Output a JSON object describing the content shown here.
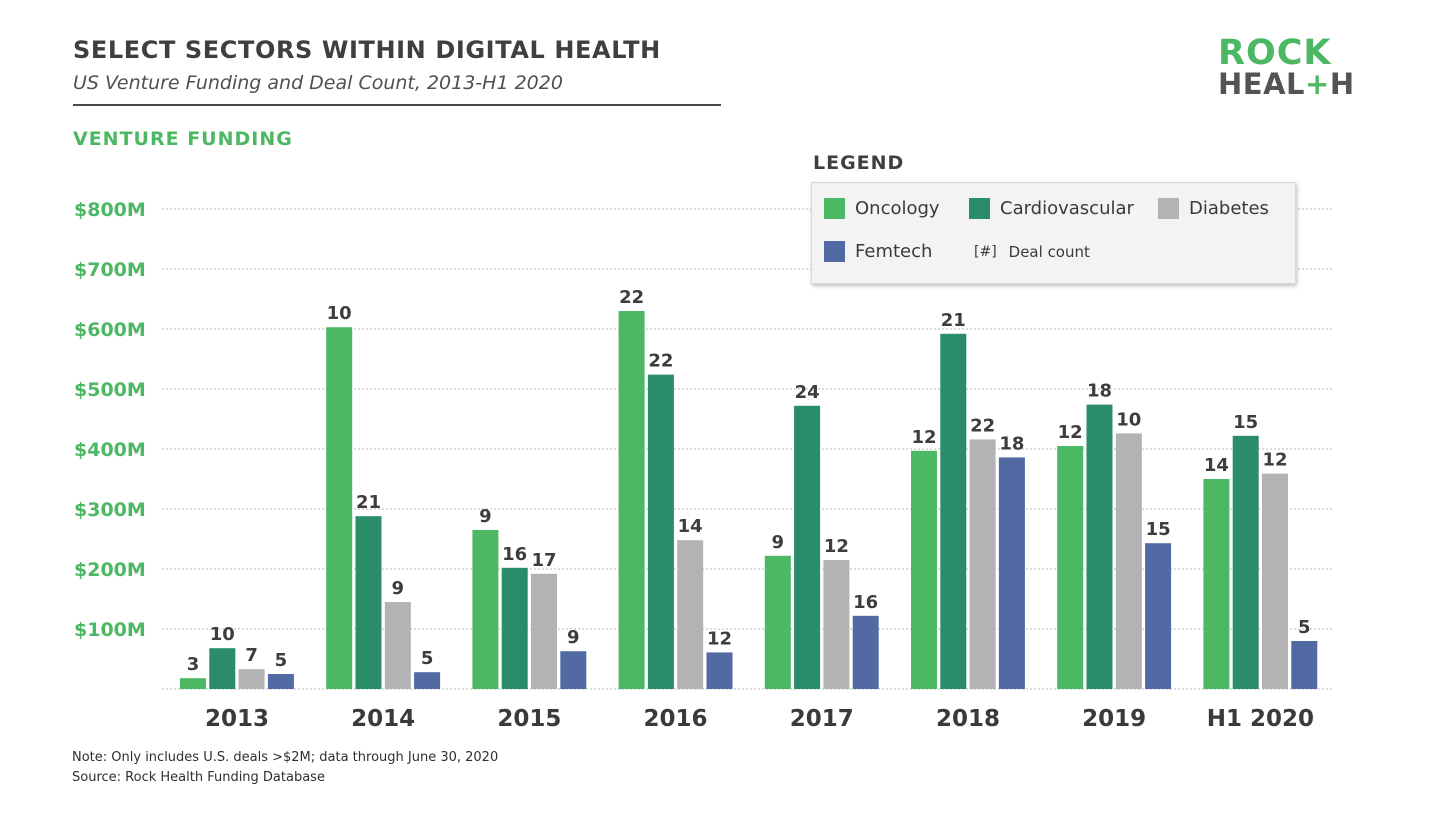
{
  "header": {
    "title": "SELECT SECTORS WITHIN DIGITAL HEALTH",
    "subtitle": "US Venture Funding and Deal Count, 2013-H1 2020",
    "section_title": "VENTURE FUNDING"
  },
  "logo": {
    "line1": "ROCK",
    "line2_a": "HEAL",
    "line2_plus": "+",
    "line2_b": "H"
  },
  "legend": {
    "title": "LEGEND",
    "deal_symbol": "[#]",
    "deal_label": "Deal count"
  },
  "colors": {
    "oncology": "#4cb863",
    "cardiovascular": "#2a8c69",
    "diabetes": "#b3b3b5",
    "femtech": "#526aa3",
    "axis_label": "#4cb863",
    "grid": "#b9b9b9"
  },
  "chart_data": {
    "type": "bar",
    "title": "SELECT SECTORS WITHIN DIGITAL HEALTH",
    "subtitle": "US Venture Funding and Deal Count, 2013-H1 2020",
    "ylabel": "VENTURE FUNDING",
    "xlabel": "",
    "categories": [
      "2013",
      "2014",
      "2015",
      "2016",
      "2017",
      "2018",
      "2019",
      "H1 2020"
    ],
    "ylim": [
      0,
      800
    ],
    "yticks": [
      100,
      200,
      300,
      400,
      500,
      600,
      700,
      800
    ],
    "ytick_labels": [
      "$100M",
      "$200M",
      "$300M",
      "$400M",
      "$500M",
      "$600M",
      "$700M",
      "$800M"
    ],
    "grid": true,
    "legend_position": "top-right",
    "series": [
      {
        "name": "Oncology",
        "color": "#4cb863",
        "values": [
          18,
          603,
          265,
          630,
          222,
          397,
          405,
          350
        ],
        "deal_counts": [
          "3",
          "10",
          "9",
          "22",
          "9",
          "12",
          "12",
          "14"
        ]
      },
      {
        "name": "Cardiovascular",
        "color": "#2a8c69",
        "values": [
          68,
          288,
          202,
          524,
          472,
          592,
          474,
          422
        ],
        "deal_counts": [
          "10",
          "21",
          "16",
          "22",
          "24",
          "21",
          "18",
          "15"
        ]
      },
      {
        "name": "Diabetes",
        "color": "#b3b3b5",
        "values": [
          33,
          145,
          192,
          248,
          215,
          416,
          426,
          359
        ],
        "deal_counts": [
          "7",
          "9",
          "17",
          "14",
          "12",
          "22",
          "10",
          "12"
        ]
      },
      {
        "name": "Femtech",
        "color": "#526aa3",
        "values": [
          25,
          28,
          63,
          61,
          122,
          386,
          243,
          80
        ],
        "deal_counts": [
          "5",
          "5",
          "9",
          "12",
          "16",
          "18",
          "15",
          "5"
        ]
      }
    ]
  },
  "footer": {
    "note": "Note: Only includes U.S. deals >$2M; data through June 30, 2020",
    "source": "Source: Rock Health Funding Database"
  }
}
